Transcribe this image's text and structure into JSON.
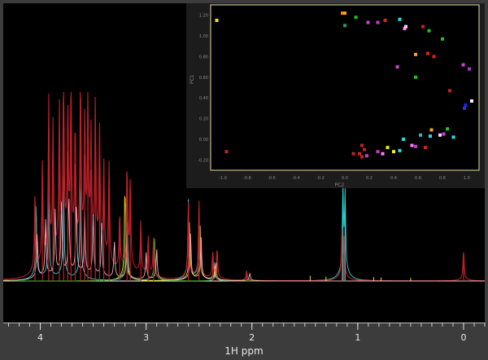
{
  "chart_data": [
    {
      "type": "line",
      "xlabel": "1H ppm",
      "x_axis": {
        "min": -0.2,
        "max": 4.35,
        "reversed": true,
        "ticks": [
          4,
          3,
          2,
          1,
          0
        ],
        "minor_step": 0.1
      },
      "y_axis": {
        "min": -0.05,
        "max": 1.0
      },
      "grid": false,
      "colors": {
        "background": "#000000",
        "baseline": "#ffffff",
        "pink": "#ffb6c1",
        "red": "#c0222a",
        "cyan": "#30e0e0",
        "yellow": "#e8e820",
        "green": "#30c030",
        "blue": "#4060ff",
        "magenta": "#d040d0"
      },
      "series": [
        {
          "color": "#c0222a",
          "peaks": [
            [
              4.05,
              0.42
            ],
            [
              3.98,
              0.55
            ],
            [
              3.92,
              0.85
            ],
            [
              3.88,
              0.7
            ],
            [
              3.82,
              0.78
            ],
            [
              3.78,
              0.99
            ],
            [
              3.74,
              0.72
            ],
            [
              3.71,
              0.88
            ],
            [
              3.67,
              0.65
            ],
            [
              3.62,
              0.92
            ],
            [
              3.58,
              0.7
            ],
            [
              3.55,
              0.8
            ],
            [
              3.52,
              0.62
            ],
            [
              3.48,
              0.78
            ],
            [
              3.44,
              0.66
            ],
            [
              3.4,
              0.5
            ],
            [
              3.35,
              0.55
            ],
            [
              3.25,
              0.3
            ],
            [
              3.18,
              0.55
            ],
            [
              3.15,
              0.48
            ],
            [
              3.05,
              0.28
            ],
            [
              2.98,
              0.2
            ],
            [
              2.93,
              0.2
            ],
            [
              2.6,
              0.4
            ],
            [
              2.5,
              0.4
            ],
            [
              2.37,
              0.14
            ],
            [
              2.33,
              0.16
            ],
            [
              2.05,
              0.05
            ],
            [
              1.15,
              0.24
            ],
            [
              1.13,
              0.2
            ],
            [
              0.0,
              0.16
            ]
          ]
        },
        {
          "color": "#30e0e0",
          "peaks": [
            [
              4.04,
              0.4
            ],
            [
              3.92,
              0.5
            ],
            [
              3.78,
              0.55
            ],
            [
              3.62,
              0.55
            ],
            [
              3.18,
              0.35
            ],
            [
              2.6,
              0.42
            ],
            [
              2.5,
              0.36
            ],
            [
              2.36,
              0.1
            ],
            [
              2.05,
              0.05
            ],
            [
              1.14,
              0.46
            ],
            [
              1.12,
              0.42
            ]
          ]
        },
        {
          "color": "#e8e820",
          "peaks": [
            [
              3.2,
              0.5
            ],
            [
              2.59,
              0.3
            ],
            [
              2.49,
              0.28
            ],
            [
              2.35,
              0.08
            ]
          ]
        },
        {
          "color": "#30c030",
          "peaks": [
            [
              4.38,
              0.12
            ],
            [
              3.19,
              0.45
            ],
            [
              2.92,
              0.22
            ],
            [
              2.34,
              0.07
            ]
          ]
        },
        {
          "color": "#ffb6c1",
          "peaks": [
            [
              4.03,
              0.24
            ],
            [
              3.95,
              0.3
            ],
            [
              3.86,
              0.34
            ],
            [
              3.8,
              0.38
            ],
            [
              3.73,
              0.42
            ],
            [
              3.66,
              0.4
            ],
            [
              3.58,
              0.36
            ],
            [
              3.5,
              0.32
            ],
            [
              3.42,
              0.28
            ],
            [
              3.3,
              0.2
            ],
            [
              3.18,
              0.28
            ],
            [
              3.0,
              0.14
            ],
            [
              2.9,
              0.16
            ],
            [
              2.58,
              0.24
            ],
            [
              2.48,
              0.22
            ],
            [
              2.34,
              0.1
            ],
            [
              2.02,
              0.04
            ]
          ]
        }
      ],
      "small_peaks": [
        [
          1.45,
          0.02
        ],
        [
          1.3,
          0.015
        ],
        [
          0.85,
          0.012
        ],
        [
          0.78,
          0.01
        ],
        [
          0.5,
          0.008
        ]
      ]
    },
    {
      "type": "scatter",
      "xlabel": "PC2",
      "ylabel": "PC1",
      "x_tick_labels": [
        "-1.0",
        "-0.8",
        "-0.6",
        "-0.4",
        "-0.2",
        "0.0",
        "0.2",
        "0.4",
        "0.6",
        "0.8",
        "1.0"
      ],
      "y_tick_labels": [
        "1.20",
        "1.00",
        "0.80",
        "0.60",
        "0.40",
        "0.20",
        "0.00",
        "-0.20"
      ],
      "xlim": [
        -1.1,
        1.1
      ],
      "ylim": [
        -0.3,
        1.3
      ],
      "axis_color": "#e0e0a0",
      "points": [
        [
          -1.05,
          1.15,
          "#f0e020"
        ],
        [
          -0.97,
          -0.12,
          "#c0222a"
        ],
        [
          -0.02,
          1.22,
          "#ff8020"
        ],
        [
          0.0,
          1.22,
          "#ffa020"
        ],
        [
          0.09,
          1.18,
          "#20c020"
        ],
        [
          0.0,
          1.1,
          "#20a060"
        ],
        [
          0.19,
          1.13,
          "#d040d0"
        ],
        [
          0.27,
          1.13,
          "#c040c0"
        ],
        [
          0.33,
          1.15,
          "#e02020"
        ],
        [
          0.45,
          1.16,
          "#20e0e0"
        ],
        [
          0.49,
          1.07,
          "#ff80ff"
        ],
        [
          0.5,
          1.09,
          "#ffd0ff"
        ],
        [
          0.58,
          0.82,
          "#ffa020"
        ],
        [
          0.68,
          0.83,
          "#e02020"
        ],
        [
          0.73,
          0.8,
          "#e02020"
        ],
        [
          0.8,
          0.97,
          "#20c020"
        ],
        [
          0.64,
          1.09,
          "#c0222a"
        ],
        [
          0.69,
          1.05,
          "#20c020"
        ],
        [
          0.43,
          0.7,
          "#d040d0"
        ],
        [
          0.58,
          0.6,
          "#20c020"
        ],
        [
          0.86,
          0.47,
          "#c0222a"
        ],
        [
          0.97,
          0.72,
          "#d040d0"
        ],
        [
          1.02,
          0.68,
          "#a040c0"
        ],
        [
          1.04,
          0.37,
          "#fff0ff"
        ],
        [
          0.99,
          0.33,
          "#2020ff"
        ],
        [
          0.98,
          0.3,
          "#2040d0"
        ],
        [
          0.84,
          0.1,
          "#20c020"
        ],
        [
          0.89,
          0.02,
          "#20e0e0"
        ],
        [
          0.81,
          0.05,
          "#d040d0"
        ],
        [
          0.71,
          0.09,
          "#ffa020"
        ],
        [
          0.78,
          0.04,
          "#ffd0ff"
        ],
        [
          0.7,
          0.03,
          "#20e0e0"
        ],
        [
          0.62,
          0.04,
          "#20c0c0"
        ],
        [
          0.48,
          0.0,
          "#20e0e0"
        ],
        [
          0.55,
          -0.06,
          "#ff80ff"
        ],
        [
          0.58,
          -0.07,
          "#c040c0"
        ],
        [
          0.66,
          -0.08,
          "#e02020"
        ],
        [
          0.35,
          -0.08,
          "#f0e020"
        ],
        [
          0.16,
          -0.1,
          "#c0222a"
        ],
        [
          0.27,
          -0.12,
          "#c040c0"
        ],
        [
          0.4,
          -0.12,
          "#f0f020"
        ],
        [
          0.45,
          -0.11,
          "#20e0e0"
        ],
        [
          0.31,
          -0.14,
          "#ff80ff"
        ],
        [
          0.12,
          -0.14,
          "#c0222a"
        ],
        [
          0.14,
          -0.17,
          "#c0222a"
        ],
        [
          0.18,
          -0.16,
          "#c040c0"
        ],
        [
          0.07,
          -0.14,
          "#c0222a"
        ],
        [
          0.14,
          -0.06,
          "#c0222a"
        ]
      ]
    }
  ]
}
